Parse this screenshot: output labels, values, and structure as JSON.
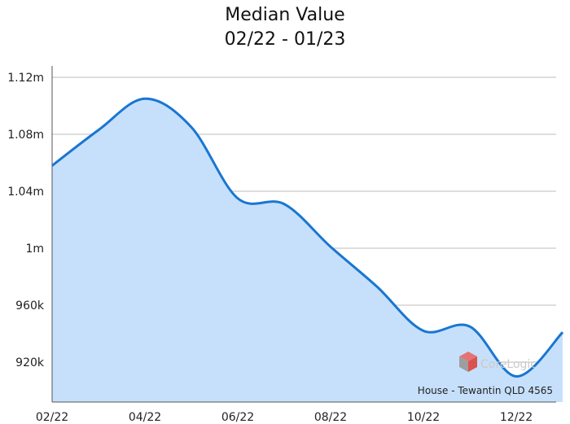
{
  "chart_data": {
    "type": "area",
    "title": "Median Value",
    "subtitle": "02/22 - 01/23",
    "caption": "House - Tewantin QLD 4565",
    "watermark": "CoreLogic",
    "xlabel": "",
    "ylabel": "",
    "x_tick_labels": [
      "02/22",
      "04/22",
      "06/22",
      "08/22",
      "10/22",
      "12/22"
    ],
    "y_tick_labels": [
      "920k",
      "960k",
      "1m",
      "1.04m",
      "1.08m",
      "1.12m"
    ],
    "y_ticks": [
      920000,
      960000,
      1000000,
      1040000,
      1080000,
      1120000
    ],
    "ylim": [
      892000,
      1128000
    ],
    "x": [
      "02/22",
      "03/22",
      "04/22",
      "05/22",
      "06/22",
      "07/22",
      "08/22",
      "09/22",
      "10/22",
      "11/22",
      "12/22",
      "01/23"
    ],
    "series": [
      {
        "name": "",
        "values": [
          1058000,
          1083000,
          1105000,
          1085000,
          1035000,
          1031000,
          1001000,
          973000,
          942000,
          945000,
          910000,
          941000
        ]
      }
    ],
    "grid": true,
    "line_color": "#1976d2",
    "fill_color": "#c6e0fb",
    "grid_color": "#bdbdbd",
    "logo_color": "#d9534f"
  }
}
